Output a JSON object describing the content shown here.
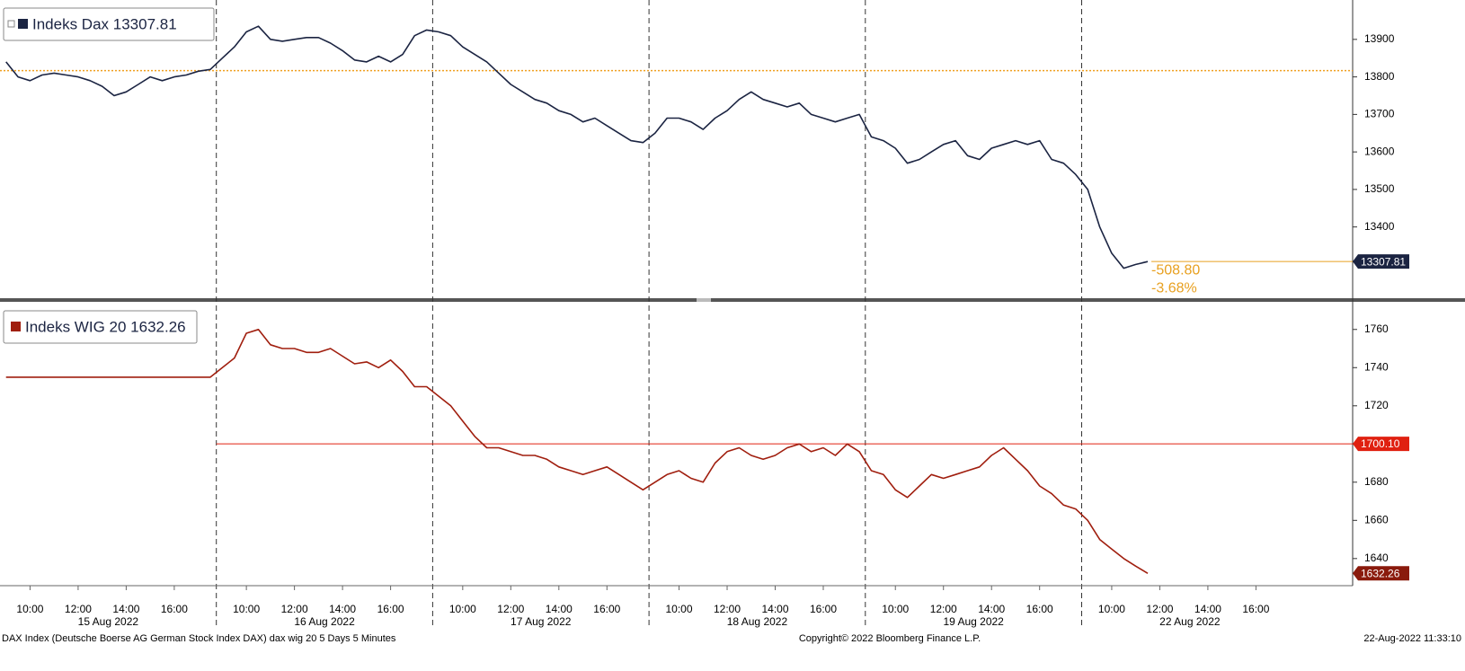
{
  "chart_data": {
    "type": "line",
    "x": [
      "15 Aug 2022 09:00",
      "15 Aug 2022 09:30",
      "15 Aug 2022 10:00",
      "15 Aug 2022 10:30",
      "15 Aug 2022 11:00",
      "15 Aug 2022 11:30",
      "15 Aug 2022 12:00",
      "15 Aug 2022 12:30",
      "15 Aug 2022 13:00",
      "15 Aug 2022 13:30",
      "15 Aug 2022 14:00",
      "15 Aug 2022 14:30",
      "15 Aug 2022 15:00",
      "15 Aug 2022 15:30",
      "15 Aug 2022 16:00",
      "15 Aug 2022 16:30",
      "15 Aug 2022 17:00",
      "15 Aug 2022 17:30",
      "16 Aug 2022 09:00",
      "16 Aug 2022 09:30",
      "16 Aug 2022 10:00",
      "16 Aug 2022 10:30",
      "16 Aug 2022 11:00",
      "16 Aug 2022 11:30",
      "16 Aug 2022 12:00",
      "16 Aug 2022 12:30",
      "16 Aug 2022 13:00",
      "16 Aug 2022 13:30",
      "16 Aug 2022 14:00",
      "16 Aug 2022 14:30",
      "16 Aug 2022 15:00",
      "16 Aug 2022 15:30",
      "16 Aug 2022 16:00",
      "16 Aug 2022 16:30",
      "16 Aug 2022 17:00",
      "16 Aug 2022 17:30",
      "17 Aug 2022 09:00",
      "17 Aug 2022 09:30",
      "17 Aug 2022 10:00",
      "17 Aug 2022 10:30",
      "17 Aug 2022 11:00",
      "17 Aug 2022 11:30",
      "17 Aug 2022 12:00",
      "17 Aug 2022 12:30",
      "17 Aug 2022 13:00",
      "17 Aug 2022 13:30",
      "17 Aug 2022 14:00",
      "17 Aug 2022 14:30",
      "17 Aug 2022 15:00",
      "17 Aug 2022 15:30",
      "17 Aug 2022 16:00",
      "17 Aug 2022 16:30",
      "17 Aug 2022 17:00",
      "17 Aug 2022 17:30",
      "18 Aug 2022 09:00",
      "18 Aug 2022 09:30",
      "18 Aug 2022 10:00",
      "18 Aug 2022 10:30",
      "18 Aug 2022 11:00",
      "18 Aug 2022 11:30",
      "18 Aug 2022 12:00",
      "18 Aug 2022 12:30",
      "18 Aug 2022 13:00",
      "18 Aug 2022 13:30",
      "18 Aug 2022 14:00",
      "18 Aug 2022 14:30",
      "18 Aug 2022 15:00",
      "18 Aug 2022 15:30",
      "18 Aug 2022 16:00",
      "18 Aug 2022 16:30",
      "18 Aug 2022 17:00",
      "18 Aug 2022 17:30",
      "19 Aug 2022 09:00",
      "19 Aug 2022 09:30",
      "19 Aug 2022 10:00",
      "19 Aug 2022 10:30",
      "19 Aug 2022 11:00",
      "19 Aug 2022 11:30",
      "19 Aug 2022 12:00",
      "19 Aug 2022 12:30",
      "19 Aug 2022 13:00",
      "19 Aug 2022 13:30",
      "19 Aug 2022 14:00",
      "19 Aug 2022 14:30",
      "19 Aug 2022 15:00",
      "19 Aug 2022 15:30",
      "19 Aug 2022 16:00",
      "19 Aug 2022 16:30",
      "19 Aug 2022 17:00",
      "19 Aug 2022 17:30",
      "22 Aug 2022 09:00",
      "22 Aug 2022 09:30",
      "22 Aug 2022 10:00",
      "22 Aug 2022 10:30",
      "22 Aug 2022 11:00",
      "22 Aug 2022 11:30"
    ],
    "hour_labels": [
      "10:00",
      "12:00",
      "14:00",
      "16:00"
    ],
    "day_labels": [
      "15 Aug 2022",
      "16 Aug 2022",
      "17 Aug 2022",
      "18 Aug 2022",
      "19 Aug 2022",
      "22 Aug 2022"
    ],
    "panels": [
      {
        "series": [
          {
            "name": "Indeks Dax 13307.81",
            "color": "#1b2442",
            "values": [
              13840,
              13800,
              13790,
              13805,
              13810,
              13805,
              13800,
              13790,
              13775,
              13750,
              13760,
              13780,
              13800,
              13790,
              13800,
              13805,
              13815,
              13820,
              13850,
              13880,
              13920,
              13935,
              13900,
              13895,
              13900,
              13905,
              13905,
              13890,
              13870,
              13845,
              13840,
              13855,
              13840,
              13860,
              13910,
              13925,
              13920,
              13910,
              13880,
              13860,
              13840,
              13810,
              13780,
              13760,
              13740,
              13730,
              13710,
              13700,
              13680,
              13690,
              13670,
              13650,
              13630,
              13625,
              13650,
              13690,
              13690,
              13680,
              13660,
              13690,
              13710,
              13740,
              13760,
              13740,
              13730,
              13720,
              13730,
              13700,
              13690,
              13680,
              13690,
              13700,
              13640,
              13630,
              13610,
              13570,
              13580,
              13600,
              13620,
              13630,
              13590,
              13580,
              13610,
              13620,
              13630,
              13620,
              13630,
              13580,
              13570,
              13540,
              13500,
              13400,
              13330,
              13290,
              13300,
              13307.81
            ]
          }
        ],
        "ylim": [
          13210,
          14005
        ],
        "yticks": [
          13400,
          13500,
          13600,
          13700,
          13800,
          13900
        ],
        "reference": {
          "value": 13816.61,
          "color": "#f0a020"
        },
        "annotations": [
          "-508.80",
          "-3.68%"
        ],
        "annotation_color": "#e8a020",
        "tag_color": "#1b2442"
      },
      {
        "series": [
          {
            "name": "Indeks WIG 20 1632.26",
            "color": "#a01e0e",
            "values": [
              1735,
              1735,
              1735,
              1735,
              1735,
              1735,
              1735,
              1735,
              1735,
              1735,
              1735,
              1735,
              1735,
              1735,
              1735,
              1735,
              1735,
              1735,
              1740,
              1745,
              1758,
              1760,
              1752,
              1750,
              1750,
              1748,
              1748,
              1750,
              1746,
              1742,
              1743,
              1740,
              1744,
              1738,
              1730,
              1730,
              1725,
              1720,
              1712,
              1704,
              1698,
              1698,
              1696,
              1694,
              1694,
              1692,
              1688,
              1686,
              1684,
              1686,
              1688,
              1684,
              1680,
              1676,
              1680,
              1684,
              1686,
              1682,
              1680,
              1690,
              1696,
              1698,
              1694,
              1692,
              1694,
              1698,
              1700,
              1696,
              1698,
              1694,
              1700,
              1696,
              1686,
              1684,
              1676,
              1672,
              1678,
              1684,
              1682,
              1684,
              1686,
              1688,
              1694,
              1698,
              1692,
              1686,
              1678,
              1674,
              1668,
              1666,
              1660,
              1650,
              1645,
              1640,
              1636,
              1632.26
            ]
          }
        ],
        "ylim": [
          1625.8,
          1774
        ],
        "yticks": [
          1640,
          1660,
          1680,
          1700,
          1720,
          1740,
          1760
        ],
        "reference": {
          "value": 1700.1,
          "label": "1700.10",
          "color": "#e02010"
        },
        "tag_color": "#8a1a0c"
      }
    ],
    "footer": {
      "left": "DAX Index (Deutsche Boerse AG German Stock Index DAX) dax wig 20 5 Days 5 Minutes",
      "center": "Copyright© 2022 Bloomberg Finance L.P.",
      "right": "22-Aug-2022 11:33:10"
    }
  }
}
